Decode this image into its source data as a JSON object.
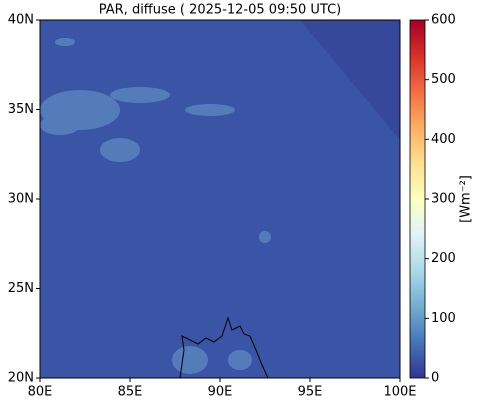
{
  "chart_data": {
    "type": "map",
    "title": "PAR, diffuse ( 2025-12-05 09:50 UTC)",
    "xlim": [
      80,
      100
    ],
    "ylim": [
      20,
      40
    ],
    "xticks": [
      {
        "value": 80,
        "label": "80E"
      },
      {
        "value": 85,
        "label": "85E"
      },
      {
        "value": 90,
        "label": "90E"
      },
      {
        "value": 95,
        "label": "95E"
      },
      {
        "value": 100,
        "label": "100E"
      }
    ],
    "yticks": [
      {
        "value": 20,
        "label": "20N"
      },
      {
        "value": 25,
        "label": "25N"
      },
      {
        "value": 30,
        "label": "30N"
      },
      {
        "value": 35,
        "label": "35N"
      },
      {
        "value": 40,
        "label": "40N"
      }
    ],
    "colorbar": {
      "label": "[Wm⁻²]",
      "colormap": "RdYlBu_r",
      "lim": [
        0,
        600
      ],
      "ticks": [
        0,
        100,
        200,
        300,
        400,
        500,
        600
      ]
    }
  }
}
